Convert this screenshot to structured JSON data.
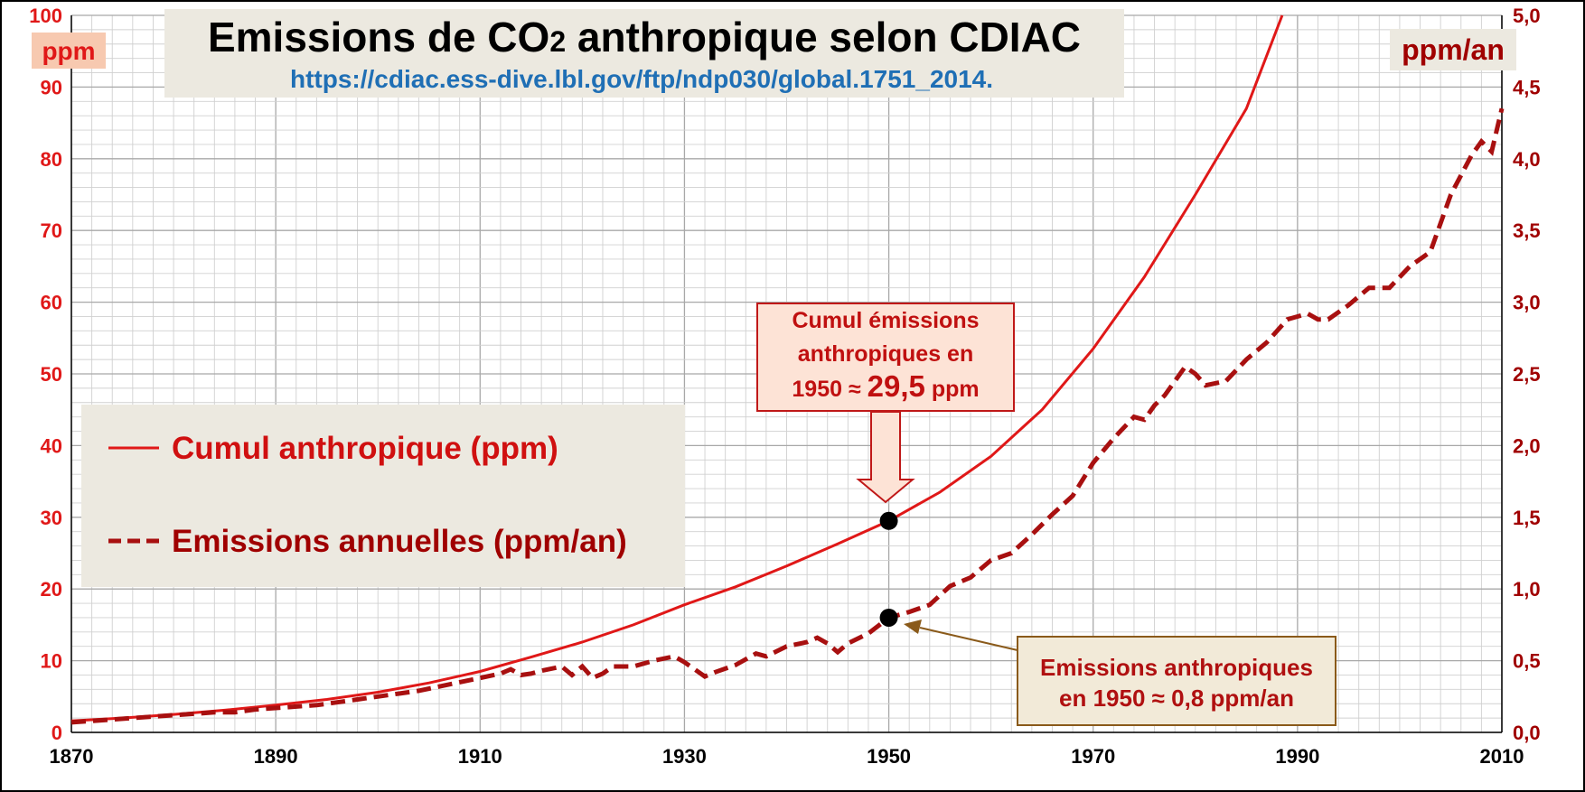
{
  "colors": {
    "frame": "#000000",
    "plot_bg": "#ffffff",
    "grid_minor": "#d0d0d0",
    "grid_major": "#a8a8a8",
    "cumul": "#e01818",
    "annual": "#a81010",
    "left_axis": "#e01818",
    "right_axis": "#a00000",
    "url": "#1f6fb5",
    "panel_bg": "#ece9e0",
    "ppm_badge_bg": "#f7c9b0",
    "callout_bg": "#fde3d6",
    "callout_border": "#c01818",
    "callout2_bg": "#f2ead8",
    "callout2_border": "#8a5a1a",
    "arrow_brown": "#8a5a1a"
  },
  "title": {
    "main": "Emissions de CO",
    "sub": "2",
    "rest": " anthropique selon CDIAC",
    "url": "https://cdiac.ess-dive.lbl.gov/ftp/ndp030/global.1751_2014."
  },
  "axis_badges": {
    "left": "ppm",
    "right": "ppm/an"
  },
  "legend": {
    "cumul": "Cumul anthropique (ppm)",
    "annual": "Emissions annuelles (ppm/an)"
  },
  "callout_cumul": {
    "line1": "Cumul émissions",
    "line2": "anthropiques en",
    "line3_pre": "1950 ≈ ",
    "line3_value": "29,5",
    "line3_post": " ppm"
  },
  "callout_annual": {
    "line1": "Emissions anthropiques",
    "line2": "en 1950 ≈ 0,8 ppm/an"
  },
  "chart_data": {
    "type": "line",
    "title": "Emissions de CO2 anthropique selon CDIAC",
    "xlabel": "",
    "ylabel_left": "ppm",
    "ylabel_right": "ppm/an",
    "xlim": [
      1870,
      2010
    ],
    "ylim_left": [
      0,
      100
    ],
    "ylim_right": [
      0,
      5
    ],
    "x_ticks": [
      "1870",
      "1890",
      "1910",
      "1930",
      "1950",
      "1970",
      "1990",
      "2010"
    ],
    "x_tick_values": [
      1870,
      1890,
      1910,
      1930,
      1950,
      1970,
      1990,
      2010
    ],
    "y_left_ticks": [
      "0",
      "10",
      "20",
      "30",
      "40",
      "50",
      "60",
      "70",
      "80",
      "90",
      "100"
    ],
    "y_left_tick_values": [
      0,
      10,
      20,
      30,
      40,
      50,
      60,
      70,
      80,
      90,
      100
    ],
    "y_right_ticks": [
      "0,0",
      "0,5",
      "1,0",
      "1,5",
      "2,0",
      "2,5",
      "3,0",
      "3,5",
      "4,0",
      "4,5",
      "5,0"
    ],
    "y_right_tick_values": [
      0,
      0.5,
      1.0,
      1.5,
      2.0,
      2.5,
      3.0,
      3.5,
      4.0,
      4.5,
      5.0
    ],
    "series": [
      {
        "name": "Cumul anthropique (ppm)",
        "axis": "left",
        "style": "solid",
        "x": [
          1870,
          1875,
          1880,
          1885,
          1890,
          1895,
          1900,
          1905,
          1910,
          1915,
          1920,
          1925,
          1930,
          1935,
          1940,
          1945,
          1950,
          1955,
          1960,
          1965,
          1970,
          1975,
          1980,
          1985,
          1988.5
        ],
        "values": [
          1.6,
          2.0,
          2.5,
          3.1,
          3.8,
          4.6,
          5.6,
          6.9,
          8.5,
          10.5,
          12.6,
          15.0,
          17.8,
          20.3,
          23.2,
          26.3,
          29.5,
          33.5,
          38.5,
          45.0,
          53.5,
          63.5,
          75.0,
          87.0,
          100
        ]
      },
      {
        "name": "Emissions annuelles (ppm/an)",
        "axis": "right",
        "style": "dashed",
        "x": [
          1870,
          1872,
          1874,
          1876,
          1878,
          1880,
          1882,
          1884,
          1886,
          1888,
          1890,
          1892,
          1894,
          1896,
          1898,
          1900,
          1902,
          1904,
          1906,
          1908,
          1910,
          1912,
          1913,
          1914,
          1915,
          1916,
          1918,
          1919,
          1920,
          1921,
          1922,
          1923,
          1925,
          1927,
          1929,
          1930,
          1931,
          1932,
          1933,
          1935,
          1937,
          1938,
          1940,
          1942,
          1943,
          1944,
          1945,
          1946,
          1948,
          1950,
          1952,
          1954,
          1956,
          1958,
          1960,
          1962,
          1964,
          1966,
          1968,
          1970,
          1972,
          1974,
          1975,
          1976,
          1977,
          1979,
          1980,
          1981,
          1983,
          1985,
          1987,
          1989,
          1991,
          1992,
          1993,
          1995,
          1997,
          1999,
          2001,
          2003,
          2005,
          2007,
          2008,
          2009,
          2010
        ],
        "values": [
          0.07,
          0.08,
          0.09,
          0.1,
          0.11,
          0.12,
          0.13,
          0.14,
          0.14,
          0.16,
          0.17,
          0.18,
          0.19,
          0.21,
          0.23,
          0.25,
          0.27,
          0.29,
          0.32,
          0.35,
          0.38,
          0.41,
          0.44,
          0.4,
          0.41,
          0.43,
          0.46,
          0.4,
          0.46,
          0.38,
          0.41,
          0.46,
          0.46,
          0.5,
          0.53,
          0.49,
          0.44,
          0.39,
          0.42,
          0.47,
          0.55,
          0.53,
          0.6,
          0.63,
          0.66,
          0.62,
          0.56,
          0.62,
          0.69,
          0.8,
          0.84,
          0.89,
          1.02,
          1.08,
          1.2,
          1.25,
          1.38,
          1.52,
          1.65,
          1.88,
          2.05,
          2.2,
          2.18,
          2.28,
          2.35,
          2.55,
          2.5,
          2.42,
          2.45,
          2.6,
          2.72,
          2.88,
          2.92,
          2.88,
          2.88,
          2.98,
          3.1,
          3.1,
          3.25,
          3.35,
          3.75,
          4.02,
          4.12,
          4.05,
          4.35
        ]
      }
    ],
    "markers": [
      {
        "x": 1950,
        "y": 29.5,
        "axis": "left"
      },
      {
        "x": 1950,
        "y": 0.8,
        "axis": "right"
      }
    ]
  }
}
